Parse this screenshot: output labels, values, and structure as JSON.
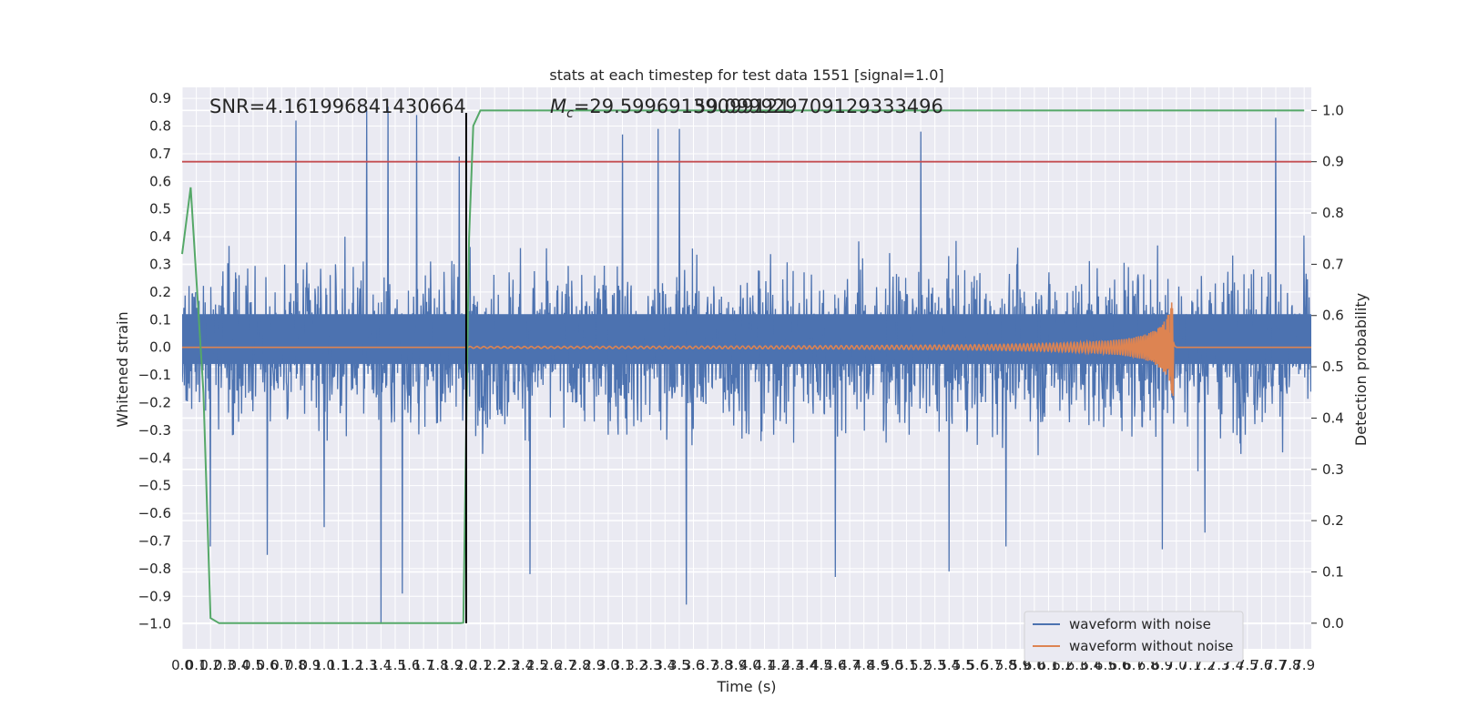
{
  "chart_data": {
    "type": "line",
    "title": "stats at each timestep for test data 1551 [signal=1.0]",
    "xlabel": "Time (s)",
    "ylabel": "Whitened strain",
    "y2label": "Detection probability",
    "xlim": [
      0.0,
      7.95
    ],
    "ylim": [
      -1.09,
      0.94
    ],
    "y2lim": [
      -0.05,
      1.045
    ],
    "x_ticks": [
      "0.0",
      "0.1",
      "0.2",
      "0.3",
      "0.4",
      "0.5",
      "0.6",
      "0.7",
      "0.8",
      "0.9",
      "1.0",
      "1.1",
      "1.2",
      "1.3",
      "1.4",
      "1.5",
      "1.6",
      "1.7",
      "1.8",
      "1.9",
      "2.0",
      "2.1",
      "2.2",
      "2.3",
      "2.4",
      "2.5",
      "2.6",
      "2.7",
      "2.8",
      "2.9",
      "3.0",
      "3.1",
      "3.2",
      "3.3",
      "3.4",
      "3.5",
      "3.6",
      "3.7",
      "3.8",
      "3.9",
      "4.0",
      "4.1",
      "4.2",
      "4.3",
      "4.4",
      "4.5",
      "4.6",
      "4.7",
      "4.8",
      "4.9",
      "5.0",
      "5.1",
      "5.2",
      "5.3",
      "5.4",
      "5.5",
      "5.6",
      "5.7",
      "5.8",
      "5.9",
      "6.0",
      "6.1",
      "6.2",
      "6.3",
      "6.4",
      "6.5",
      "6.6",
      "6.7",
      "6.8",
      "6.9",
      "7.0",
      "7.1",
      "7.2",
      "7.3",
      "7.4",
      "7.5",
      "7.6",
      "7.7",
      "7.8",
      "7.9"
    ],
    "y_ticks": [
      "0.9",
      "0.8",
      "0.7",
      "0.6",
      "0.5",
      "0.4",
      "0.3",
      "0.2",
      "0.1",
      "0.0",
      "−0.1",
      "−0.2",
      "−0.3",
      "−0.4",
      "−0.5",
      "−0.6",
      "−0.7",
      "−0.8",
      "−0.9",
      "−1.0"
    ],
    "y2_ticks": [
      "1.0",
      "0.9",
      "0.8",
      "0.7",
      "0.6",
      "0.5",
      "0.4",
      "0.3",
      "0.2",
      "0.1",
      "0.0"
    ],
    "grid": true,
    "legend_position": "lower-right",
    "annotations": {
      "snr": "SNR=4.161996841430664",
      "mc": "=29.59969139099121",
      "mc_symbol": "M",
      "mc_subscript": "c",
      "overlap": "59.099929709129333496"
    },
    "series": [
      {
        "name": "waveform with noise",
        "color": "#4c72b0",
        "description_values": "band of strain noise spanning roughly -0.45 to 0.6 over 0-7.95 s, peaks near 0.87 and -1.0",
        "spikes": [
          {
            "x": 0.8,
            "y": 0.82
          },
          {
            "x": 1.3,
            "y": 0.86
          },
          {
            "x": 1.45,
            "y": 0.87
          },
          {
            "x": 1.65,
            "y": 0.84
          },
          {
            "x": 1.95,
            "y": 0.69
          },
          {
            "x": 3.1,
            "y": 0.77
          },
          {
            "x": 3.35,
            "y": 0.79
          },
          {
            "x": 3.5,
            "y": 0.79
          },
          {
            "x": 5.2,
            "y": 0.78
          },
          {
            "x": 7.7,
            "y": 0.83
          },
          {
            "x": 1.4,
            "y": -1.0
          },
          {
            "x": 1.55,
            "y": -0.89
          },
          {
            "x": 0.6,
            "y": -0.75
          },
          {
            "x": 0.2,
            "y": -0.72
          },
          {
            "x": 3.55,
            "y": -0.93
          },
          {
            "x": 2.45,
            "y": -0.82
          },
          {
            "x": 4.6,
            "y": -0.83
          },
          {
            "x": 5.4,
            "y": -0.81
          },
          {
            "x": 5.8,
            "y": -0.72
          },
          {
            "x": 6.9,
            "y": -0.73
          },
          {
            "x": 1.0,
            "y": -0.65
          },
          {
            "x": 7.2,
            "y": -0.67
          }
        ]
      },
      {
        "name": "waveform without noise",
        "color": "#dd8452",
        "chirp_start": 2.0,
        "merger_time": 6.98,
        "peak_amplitude": 0.2,
        "end_time": 7.0
      },
      {
        "name": "detection probability",
        "axis": "right",
        "color": "#55a868",
        "x": [
          0.0,
          0.06,
          0.15,
          0.2,
          0.26,
          1.96,
          1.98,
          2.02,
          2.05,
          2.1,
          7.9
        ],
        "values": [
          0.72,
          0.85,
          0.45,
          0.01,
          0.0,
          0.0,
          0.001,
          0.75,
          0.97,
          1.0,
          1.0
        ]
      }
    ],
    "threshold": {
      "axis": "right",
      "value": 0.9,
      "color": "#c44e52"
    },
    "marker_line": {
      "x": 2.0,
      "color": "#000000"
    },
    "legend": [
      {
        "label": "waveform with noise",
        "color": "#4c72b0"
      },
      {
        "label": "waveform without noise",
        "color": "#dd8452"
      }
    ]
  }
}
